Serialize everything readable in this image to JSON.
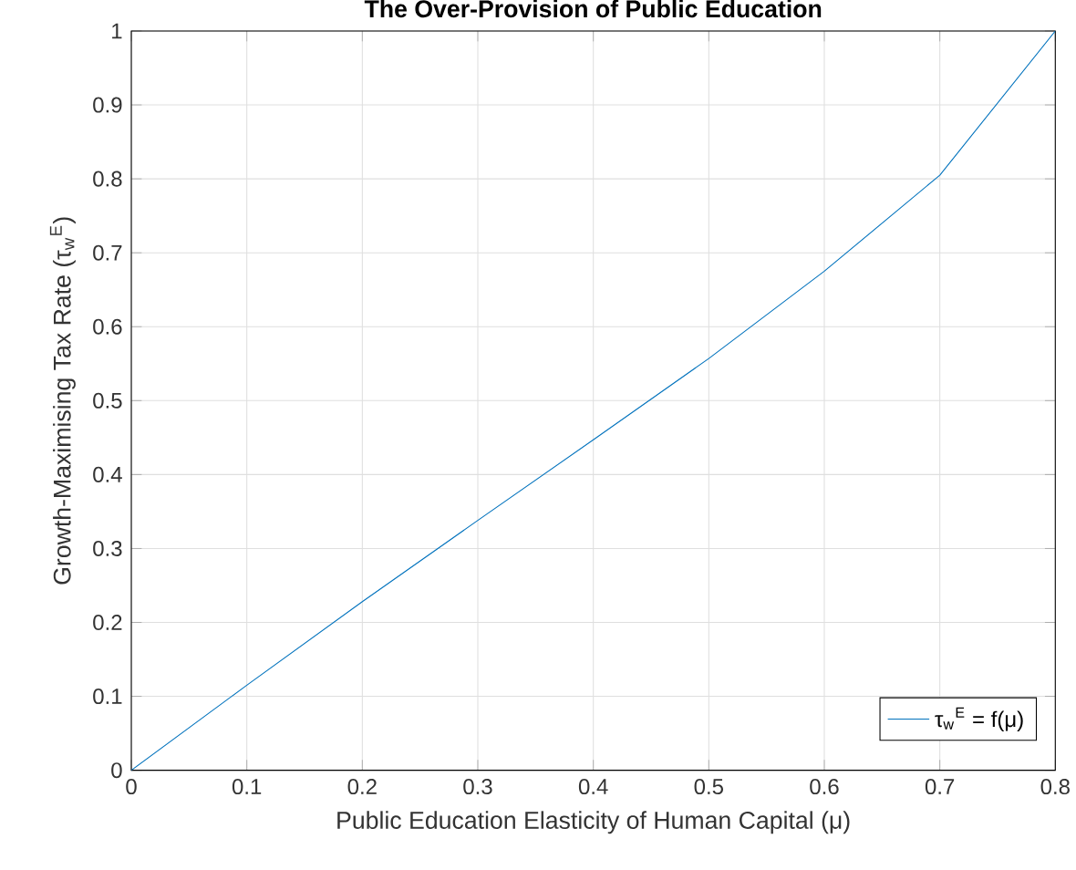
{
  "chart_data": {
    "type": "line",
    "title": "The Over-Provision of Public Education",
    "xlabel": "Public Education Elasticity of Human Capital (μ)",
    "ylabel": "Growth-Maximising Tax Rate (τ$_{w}$$^{E}$)",
    "x": [
      0,
      0.1,
      0.2,
      0.3,
      0.4,
      0.5,
      0.6,
      0.7,
      0.8
    ],
    "series": [
      {
        "name": "τ$_{w}$$^{E}$ = f(μ)",
        "color": "#0072bd",
        "values": [
          0,
          0.115,
          0.228,
          0.338,
          0.447,
          0.557,
          0.675,
          0.805,
          1.0
        ]
      }
    ],
    "xlim": [
      0,
      0.8
    ],
    "ylim": [
      0,
      1
    ],
    "xticks": [
      0,
      0.1,
      0.2,
      0.3,
      0.4,
      0.5,
      0.6,
      0.7,
      0.8
    ],
    "yticks": [
      0,
      0.1,
      0.2,
      0.3,
      0.4,
      0.5,
      0.6,
      0.7,
      0.8,
      0.9,
      1
    ],
    "grid": true,
    "legend": "bottom right",
    "marker": "none",
    "line_style": "solid"
  }
}
